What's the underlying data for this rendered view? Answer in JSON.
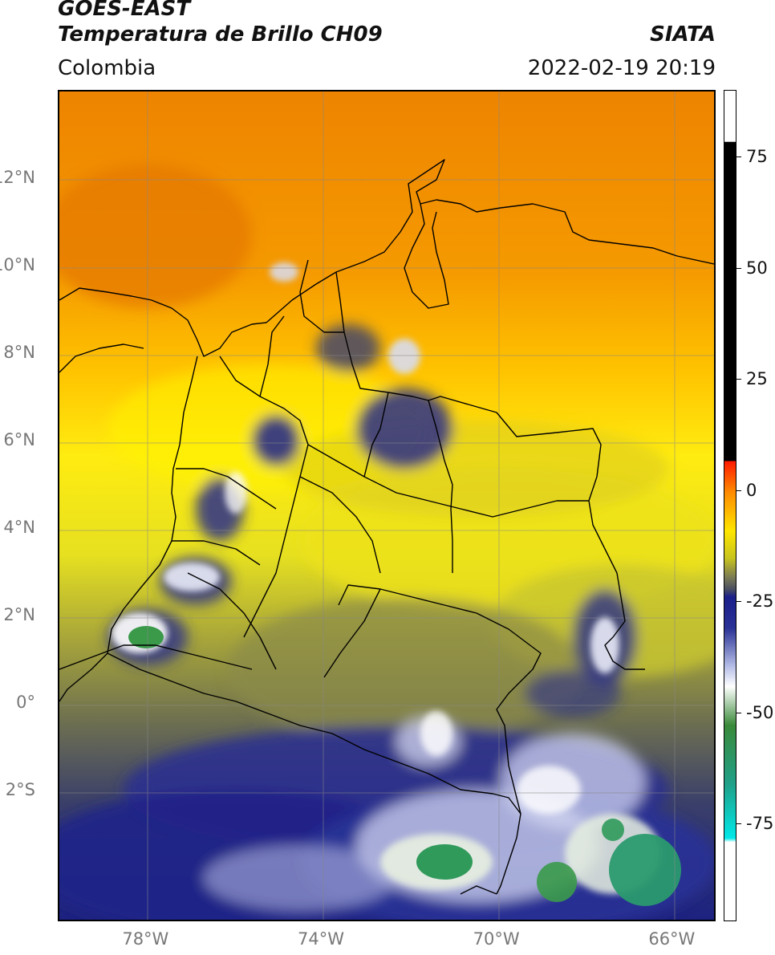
{
  "header": {
    "satellite": "GOES-EAST",
    "product": "Temperatura de Brillo CH09",
    "brand": "SIATA",
    "region": "Colombia",
    "datetime": "2022-02-19 20:19"
  },
  "map": {
    "lat_range": [
      -5,
      14
    ],
    "lon_range": [
      -80,
      -65
    ],
    "lat_ticks": [
      {
        "value": 12,
        "label": "12°N"
      },
      {
        "value": 10,
        "label": "10°N"
      },
      {
        "value": 8,
        "label": "8°N"
      },
      {
        "value": 6,
        "label": "6°N"
      },
      {
        "value": 4,
        "label": "4°N"
      },
      {
        "value": 2,
        "label": "2°N"
      },
      {
        "value": 0,
        "label": "0°"
      },
      {
        "value": -2,
        "label": "2°S"
      }
    ],
    "lon_ticks": [
      {
        "value": -78,
        "label": "78°W"
      },
      {
        "value": -74,
        "label": "74°W"
      },
      {
        "value": -70,
        "label": "70°W"
      },
      {
        "value": -66,
        "label": "66°W"
      }
    ],
    "grid": true
  },
  "colorbar": {
    "range": [
      -97,
      90
    ],
    "ticks": [
      {
        "value": 75,
        "label": "75"
      },
      {
        "value": 50,
        "label": "50"
      },
      {
        "value": 25,
        "label": "25"
      },
      {
        "value": 0,
        "label": "0"
      },
      {
        "value": -25,
        "label": "-25"
      },
      {
        "value": -50,
        "label": "-50"
      },
      {
        "value": -75,
        "label": "-75"
      }
    ],
    "stops": [
      {
        "value": 90,
        "color": "#000000"
      },
      {
        "value": 8,
        "color": "#000000"
      },
      {
        "value": 7.9,
        "color": "#ff1a00"
      },
      {
        "value": 0,
        "color": "#ff8a00"
      },
      {
        "value": -10,
        "color": "#ffe600"
      },
      {
        "value": -17,
        "color": "#c8c41e"
      },
      {
        "value": -22,
        "color": "#7a7a55"
      },
      {
        "value": -25,
        "color": "#4a4f60"
      },
      {
        "value": -27,
        "color": "#1b1f8a"
      },
      {
        "value": -35,
        "color": "#2a3296"
      },
      {
        "value": -45,
        "color": "#b8c0e8"
      },
      {
        "value": -50,
        "color": "#ffffff"
      },
      {
        "value": -60,
        "color": "#3a8a3a"
      },
      {
        "value": -75,
        "color": "#20a088"
      },
      {
        "value": -89,
        "color": "#00e8e8"
      },
      {
        "value": -90,
        "color": "#ffffff"
      },
      {
        "value": -97,
        "color": "#ffffff"
      }
    ]
  },
  "colors": {
    "orange": "#f28a00",
    "yellow": "#ffe400",
    "olive": "#9c9a3a",
    "gray": "#5a5c5a",
    "navy": "#1b1f7a",
    "white": "#f4f4f8",
    "green": "#2f9a4a",
    "teal": "#2aa882"
  }
}
